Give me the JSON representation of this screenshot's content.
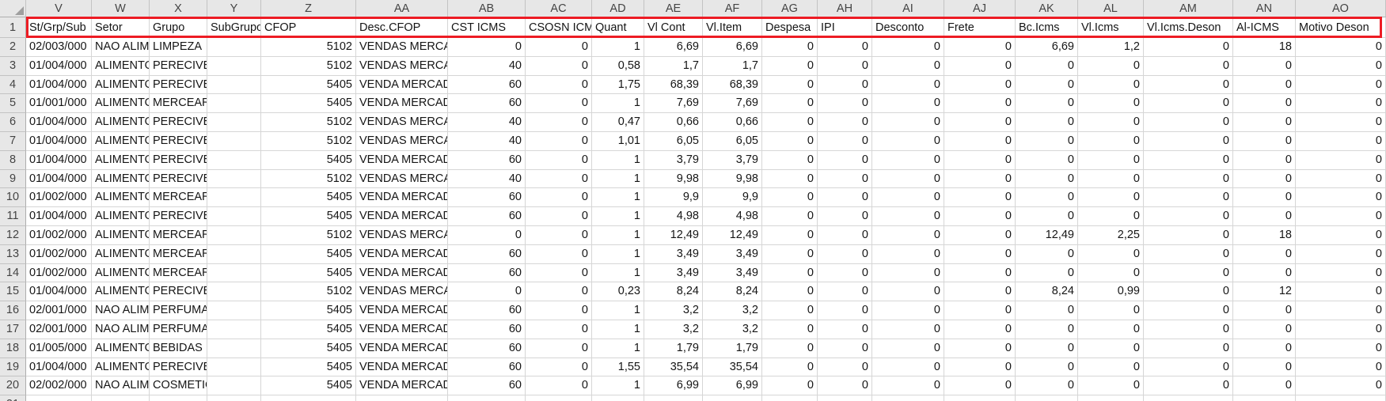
{
  "annotation": {
    "highlight_border_color": "#ed1c24"
  },
  "header_row_number": "1",
  "columns": [
    {
      "letter": "V",
      "header": "St/Grp/Sub"
    },
    {
      "letter": "W",
      "header": "Setor"
    },
    {
      "letter": "X",
      "header": "Grupo"
    },
    {
      "letter": "Y",
      "header": "SubGrupo"
    },
    {
      "letter": "Z",
      "header": "CFOP"
    },
    {
      "letter": "AA",
      "header": "Desc.CFOP"
    },
    {
      "letter": "AB",
      "header": "CST ICMS"
    },
    {
      "letter": "AC",
      "header": "CSOSN ICMS"
    },
    {
      "letter": "AD",
      "header": "Quant"
    },
    {
      "letter": "AE",
      "header": "Vl Cont"
    },
    {
      "letter": "AF",
      "header": "Vl.Item"
    },
    {
      "letter": "AG",
      "header": "Despesa"
    },
    {
      "letter": "AH",
      "header": "IPI"
    },
    {
      "letter": "AI",
      "header": "Desconto"
    },
    {
      "letter": "AJ",
      "header": "Frete"
    },
    {
      "letter": "AK",
      "header": "Bc.Icms"
    },
    {
      "letter": "AL",
      "header": "Vl.Icms"
    },
    {
      "letter": "AM",
      "header": "Vl.Icms.Deson"
    },
    {
      "letter": "AN",
      "header": "Al-ICMS"
    },
    {
      "letter": "AO",
      "header": "Motivo Deson"
    }
  ],
  "rows": [
    {
      "n": "2",
      "cells": [
        "02/003/000",
        "NAO ALIMENTOS",
        "LIMPEZA",
        "",
        "5102",
        "VENDAS MERCADORIA",
        "0",
        "0",
        "1",
        "6,69",
        "6,69",
        "0",
        "0",
        "0",
        "0",
        "6,69",
        "1,2",
        "0",
        "18",
        "0"
      ]
    },
    {
      "n": "3",
      "cells": [
        "01/004/000",
        "ALIMENTOS",
        "PERECIVEIS",
        "",
        "5102",
        "VENDAS MERCADORIA",
        "40",
        "0",
        "0,58",
        "1,7",
        "1,7",
        "0",
        "0",
        "0",
        "0",
        "0",
        "0",
        "0",
        "0",
        "0"
      ]
    },
    {
      "n": "4",
      "cells": [
        "01/004/000",
        "ALIMENTOS",
        "PERECIVEIS",
        "",
        "5405",
        "VENDA MERCADORIA",
        "60",
        "0",
        "1,75",
        "68,39",
        "68,39",
        "0",
        "0",
        "0",
        "0",
        "0",
        "0",
        "0",
        "0",
        "0"
      ]
    },
    {
      "n": "5",
      "cells": [
        "01/001/000",
        "ALIMENTOS",
        "MERCEARIA",
        "",
        "5405",
        "VENDA MERCADORIA",
        "60",
        "0",
        "1",
        "7,69",
        "7,69",
        "0",
        "0",
        "0",
        "0",
        "0",
        "0",
        "0",
        "0",
        "0"
      ]
    },
    {
      "n": "6",
      "cells": [
        "01/004/000",
        "ALIMENTOS",
        "PERECIVEIS",
        "",
        "5102",
        "VENDAS MERCADORIA",
        "40",
        "0",
        "0,47",
        "0,66",
        "0,66",
        "0",
        "0",
        "0",
        "0",
        "0",
        "0",
        "0",
        "0",
        "0"
      ]
    },
    {
      "n": "7",
      "cells": [
        "01/004/000",
        "ALIMENTOS",
        "PERECIVEIS",
        "",
        "5102",
        "VENDAS MERCADORIA",
        "40",
        "0",
        "1,01",
        "6,05",
        "6,05",
        "0",
        "0",
        "0",
        "0",
        "0",
        "0",
        "0",
        "0",
        "0"
      ]
    },
    {
      "n": "8",
      "cells": [
        "01/004/000",
        "ALIMENTOS",
        "PERECIVEIS",
        "",
        "5405",
        "VENDA MERCADORIA",
        "60",
        "0",
        "1",
        "3,79",
        "3,79",
        "0",
        "0",
        "0",
        "0",
        "0",
        "0",
        "0",
        "0",
        "0"
      ]
    },
    {
      "n": "9",
      "cells": [
        "01/004/000",
        "ALIMENTOS",
        "PERECIVEIS",
        "",
        "5102",
        "VENDAS MERCADORIA",
        "40",
        "0",
        "1",
        "9,98",
        "9,98",
        "0",
        "0",
        "0",
        "0",
        "0",
        "0",
        "0",
        "0",
        "0"
      ]
    },
    {
      "n": "10",
      "cells": [
        "01/002/000",
        "ALIMENTOS",
        "MERCEARIA",
        "",
        "5405",
        "VENDA MERCADORIA",
        "60",
        "0",
        "1",
        "9,9",
        "9,9",
        "0",
        "0",
        "0",
        "0",
        "0",
        "0",
        "0",
        "0",
        "0"
      ]
    },
    {
      "n": "11",
      "cells": [
        "01/004/000",
        "ALIMENTOS",
        "PERECIVEIS",
        "",
        "5405",
        "VENDA MERCADORIA",
        "60",
        "0",
        "1",
        "4,98",
        "4,98",
        "0",
        "0",
        "0",
        "0",
        "0",
        "0",
        "0",
        "0",
        "0"
      ]
    },
    {
      "n": "12",
      "cells": [
        "01/002/000",
        "ALIMENTOS",
        "MERCEARIA",
        "",
        "5102",
        "VENDAS MERCADORIA",
        "0",
        "0",
        "1",
        "12,49",
        "12,49",
        "0",
        "0",
        "0",
        "0",
        "12,49",
        "2,25",
        "0",
        "18",
        "0"
      ]
    },
    {
      "n": "13",
      "cells": [
        "01/002/000",
        "ALIMENTOS",
        "MERCEARIA",
        "",
        "5405",
        "VENDA MERCADORIA",
        "60",
        "0",
        "1",
        "3,49",
        "3,49",
        "0",
        "0",
        "0",
        "0",
        "0",
        "0",
        "0",
        "0",
        "0"
      ]
    },
    {
      "n": "14",
      "cells": [
        "01/002/000",
        "ALIMENTOS",
        "MERCEARIA",
        "",
        "5405",
        "VENDA MERCADORIA",
        "60",
        "0",
        "1",
        "3,49",
        "3,49",
        "0",
        "0",
        "0",
        "0",
        "0",
        "0",
        "0",
        "0",
        "0"
      ]
    },
    {
      "n": "15",
      "cells": [
        "01/004/000",
        "ALIMENTOS",
        "PERECIVEIS",
        "",
        "5102",
        "VENDAS MERCADORIA",
        "0",
        "0",
        "0,23",
        "8,24",
        "8,24",
        "0",
        "0",
        "0",
        "0",
        "8,24",
        "0,99",
        "0",
        "12",
        "0"
      ]
    },
    {
      "n": "16",
      "cells": [
        "02/001/000",
        "NAO ALIMENTOS",
        "PERFUMARIA",
        "",
        "5405",
        "VENDA MERCADORIA",
        "60",
        "0",
        "1",
        "3,2",
        "3,2",
        "0",
        "0",
        "0",
        "0",
        "0",
        "0",
        "0",
        "0",
        "0"
      ]
    },
    {
      "n": "17",
      "cells": [
        "02/001/000",
        "NAO ALIMENTOS",
        "PERFUMARIA",
        "",
        "5405",
        "VENDA MERCADORIA",
        "60",
        "0",
        "1",
        "3,2",
        "3,2",
        "0",
        "0",
        "0",
        "0",
        "0",
        "0",
        "0",
        "0",
        "0"
      ]
    },
    {
      "n": "18",
      "cells": [
        "01/005/000",
        "ALIMENTOS",
        "BEBIDAS",
        "",
        "5405",
        "VENDA MERCADORIA",
        "60",
        "0",
        "1",
        "1,79",
        "1,79",
        "0",
        "0",
        "0",
        "0",
        "0",
        "0",
        "0",
        "0",
        "0"
      ]
    },
    {
      "n": "19",
      "cells": [
        "01/004/000",
        "ALIMENTOS",
        "PERECIVEIS",
        "",
        "5405",
        "VENDA MERCADORIA",
        "60",
        "0",
        "1,55",
        "35,54",
        "35,54",
        "0",
        "0",
        "0",
        "0",
        "0",
        "0",
        "0",
        "0",
        "0"
      ]
    },
    {
      "n": "20",
      "cells": [
        "02/002/000",
        "NAO ALIMENTOS",
        "COSMETICOS",
        "",
        "5405",
        "VENDA MERCADORIA",
        "60",
        "0",
        "1",
        "6,99",
        "6,99",
        "0",
        "0",
        "0",
        "0",
        "0",
        "0",
        "0",
        "0",
        "0"
      ]
    }
  ],
  "partial_next_row_number": "21"
}
